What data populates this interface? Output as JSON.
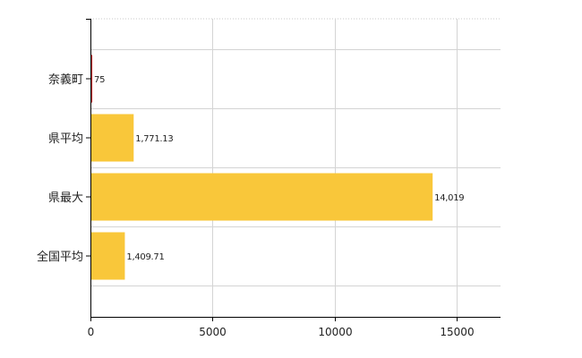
{
  "chart_data": {
    "type": "bar",
    "orientation": "horizontal",
    "categories": [
      "奈義町",
      "県平均",
      "県最大",
      "全国平均"
    ],
    "values": [
      75,
      1771.13,
      14019,
      1409.71
    ],
    "data_labels": [
      "75",
      "1,771.13",
      "14,019",
      "1,409.71"
    ],
    "bar_colors": [
      "#cc0000",
      "#f9c73a",
      "#f9c73a",
      "#f9c73a"
    ],
    "xlim": [
      0,
      16800
    ],
    "x_ticks": [
      0,
      5000,
      10000,
      15000
    ],
    "x_tick_labels": [
      "0",
      "5000",
      "10000",
      "15000"
    ],
    "grid": true,
    "legend": "none",
    "title": "",
    "xlabel": "",
    "ylabel": ""
  }
}
